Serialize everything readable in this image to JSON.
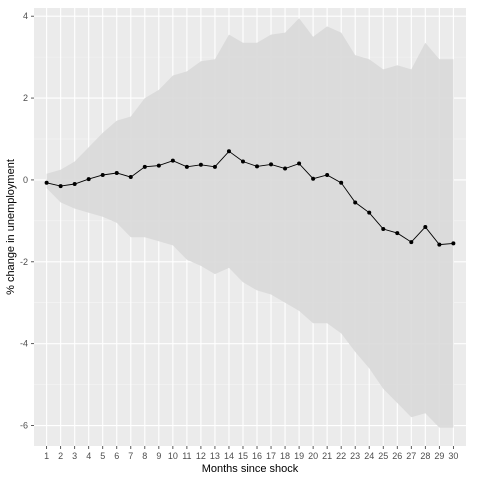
{
  "chart_data": {
    "type": "line",
    "title": "",
    "xlabel": "Months since shock",
    "ylabel": "% change in unemployment",
    "x": [
      1,
      2,
      3,
      4,
      5,
      6,
      7,
      8,
      9,
      10,
      11,
      12,
      13,
      14,
      15,
      16,
      17,
      18,
      19,
      20,
      21,
      22,
      23,
      24,
      25,
      26,
      27,
      28,
      29,
      30
    ],
    "x_tick_labels": [
      "1",
      "2",
      "3",
      "4",
      "5",
      "6",
      "7",
      "8",
      "9",
      "10",
      "11",
      "12",
      "13",
      "14",
      "15",
      "16",
      "17",
      "18",
      "19",
      "20",
      "21",
      "22",
      "23",
      "24",
      "25",
      "26",
      "27",
      "28",
      "29",
      "30"
    ],
    "xlim": [
      0.1,
      30.9
    ],
    "y_ticks": [
      4,
      2,
      0,
      -2,
      -4,
      -6
    ],
    "y_tick_labels": [
      "4",
      "2",
      "0",
      "-2",
      "-4",
      "-6"
    ],
    "ylim": [
      -6.5,
      4.2
    ],
    "grid": true,
    "legend": "none",
    "series": [
      {
        "kind": "line-with-points",
        "values": [
          -0.07,
          -0.15,
          -0.1,
          0.02,
          0.12,
          0.17,
          0.07,
          0.32,
          0.35,
          0.47,
          0.32,
          0.37,
          0.32,
          0.7,
          0.45,
          0.33,
          0.38,
          0.28,
          0.4,
          0.03,
          0.12,
          -0.07,
          -0.55,
          -0.8,
          -1.2,
          -1.3,
          -1.52,
          -1.15,
          -1.58,
          -1.55
        ]
      },
      {
        "kind": "confidence-band",
        "upper": [
          0.15,
          0.25,
          0.45,
          0.8,
          1.15,
          1.45,
          1.55,
          2.0,
          2.2,
          2.55,
          2.65,
          2.9,
          2.95,
          3.55,
          3.35,
          3.35,
          3.55,
          3.6,
          3.95,
          3.5,
          3.75,
          3.6,
          3.05,
          2.95,
          2.7,
          2.8,
          2.7,
          3.35,
          2.95,
          2.95
        ],
        "lower": [
          -0.2,
          -0.55,
          -0.7,
          -0.8,
          -0.9,
          -1.05,
          -1.4,
          -1.4,
          -1.5,
          -1.6,
          -1.95,
          -2.1,
          -2.3,
          -2.15,
          -2.5,
          -2.7,
          -2.8,
          -3.0,
          -3.2,
          -3.5,
          -3.5,
          -3.75,
          -4.2,
          -4.6,
          -5.1,
          -5.45,
          -5.8,
          -5.7,
          -6.05,
          -6.05
        ]
      }
    ],
    "colors": {
      "panel_bg": "#ebebeb",
      "grid_major": "#ffffff",
      "grid_minor": "#f5f5f5",
      "band_fill": "#d9d9d9",
      "line": "#000000",
      "tick_text": "#4d4d4d",
      "tick_mark": "#333333"
    }
  }
}
